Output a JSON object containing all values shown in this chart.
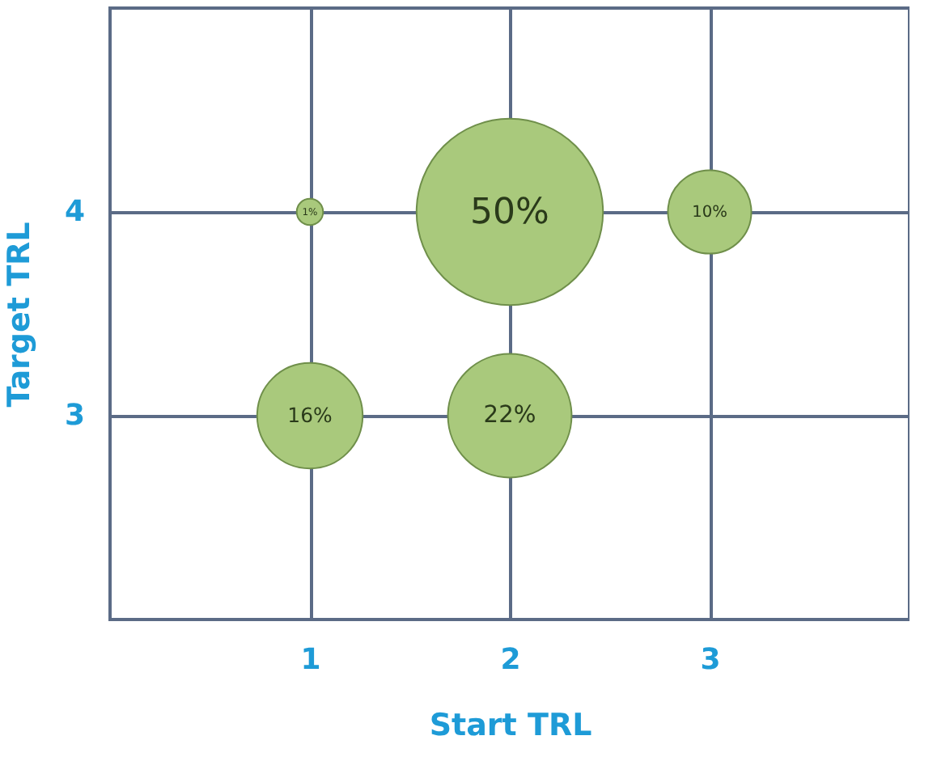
{
  "chart_data": {
    "type": "bubble",
    "xlabel": "Start TRL",
    "ylabel": "Target TRL",
    "x": [
      1,
      2,
      3,
      1,
      2
    ],
    "series": [
      {
        "color": "#a9c97c",
        "values": [
          4,
          4,
          4,
          3,
          3
        ],
        "sizes": [
          0.02,
          1,
          0.2,
          0.32,
          0.44
        ]
      }
    ],
    "annotations": [
      {
        "text": "1%",
        "x": 1,
        "y": 4
      },
      {
        "text": "50%",
        "x": 2,
        "y": 4
      },
      {
        "text": "10%",
        "x": 3,
        "y": 4
      },
      {
        "text": "16%",
        "x": 1,
        "y": 3
      },
      {
        "text": "22%",
        "x": 2,
        "y": 3
      }
    ],
    "xlim": [
      0,
      4
    ],
    "ylim": [
      2,
      5
    ],
    "xticks": [
      1,
      2,
      3
    ],
    "yticks": [
      3,
      4
    ],
    "grid": true
  }
}
